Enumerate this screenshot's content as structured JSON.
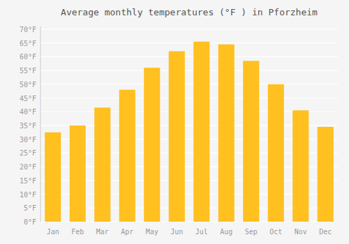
{
  "chart_data": {
    "type": "bar",
    "title": "Average monthly temperatures (°F ) in Pforzheim",
    "categories": [
      "Jan",
      "Feb",
      "Mar",
      "Apr",
      "May",
      "Jun",
      "Jul",
      "Aug",
      "Sep",
      "Oct",
      "Nov",
      "Dec"
    ],
    "values": [
      32.5,
      35.0,
      41.5,
      48.0,
      56.0,
      62.0,
      65.5,
      64.5,
      58.5,
      50.0,
      40.5,
      34.5
    ],
    "color": "#FFC020",
    "ylim": [
      0,
      71
    ],
    "yticks": [
      {
        "value": 0,
        "label": "0°F"
      },
      {
        "value": 5,
        "label": "5°F"
      },
      {
        "value": 10,
        "label": "10°F"
      },
      {
        "value": 15,
        "label": "15°F"
      },
      {
        "value": 20,
        "label": "20°F"
      },
      {
        "value": 25,
        "label": "25°F"
      },
      {
        "value": 30,
        "label": "30°F"
      },
      {
        "value": 35,
        "label": "35°F"
      },
      {
        "value": 40,
        "label": "40°F"
      },
      {
        "value": 45,
        "label": "45°F"
      },
      {
        "value": 50,
        "label": "50°F"
      },
      {
        "value": 55,
        "label": "55°F"
      },
      {
        "value": 60,
        "label": "60°F"
      },
      {
        "value": 65,
        "label": "65°F"
      },
      {
        "value": 70,
        "label": "70°F"
      }
    ],
    "grid": true
  }
}
